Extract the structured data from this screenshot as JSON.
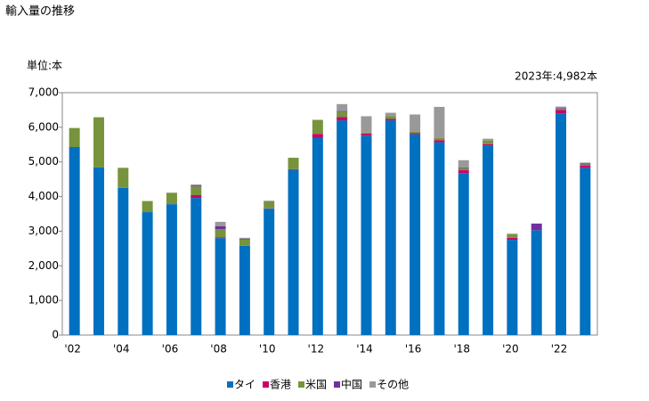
{
  "chart_data": {
    "type": "stacked_bar",
    "title": "輸入量の推移",
    "unit_label": "単位:本",
    "annotation": "2023年:4,982本",
    "categories": [
      "'02",
      null,
      "'04",
      null,
      "'06",
      null,
      "'08",
      null,
      "'10",
      null,
      "'12",
      null,
      "'14",
      null,
      "'16",
      null,
      "'18",
      null,
      "'20",
      null,
      "'22",
      null
    ],
    "series": [
      {
        "name": "タイ",
        "color": "#0070c0",
        "values": [
          5430,
          4840,
          4250,
          3550,
          3780,
          3960,
          2800,
          2580,
          3650,
          4770,
          5700,
          6200,
          5760,
          6200,
          5800,
          5570,
          4680,
          5480,
          2750,
          3030,
          6400,
          4830
        ]
      },
      {
        "name": "香港",
        "color": "#cc0066",
        "values": [
          0,
          0,
          0,
          0,
          0,
          80,
          20,
          0,
          10,
          20,
          110,
          100,
          60,
          40,
          30,
          60,
          80,
          30,
          60,
          20,
          100,
          60
        ]
      },
      {
        "name": "米国",
        "color": "#77933c",
        "values": [
          550,
          1450,
          580,
          320,
          330,
          250,
          240,
          180,
          200,
          330,
          400,
          150,
          30,
          80,
          40,
          60,
          60,
          100,
          100,
          0,
          30,
          40
        ]
      },
      {
        "name": "中国",
        "color": "#7030a0",
        "values": [
          0,
          0,
          0,
          0,
          0,
          30,
          80,
          20,
          0,
          0,
          0,
          20,
          0,
          0,
          0,
          0,
          20,
          0,
          0,
          170,
          20,
          30
        ]
      },
      {
        "name": "その他",
        "color": "#999999",
        "values": [
          0,
          0,
          0,
          0,
          0,
          30,
          130,
          30,
          20,
          0,
          10,
          200,
          470,
          100,
          500,
          900,
          210,
          60,
          20,
          0,
          50,
          22
        ]
      }
    ],
    "ylim": [
      0,
      7000
    ],
    "yticks": [
      0,
      {
        "value": 1000,
        "label": "1,000"
      },
      {
        "value": 2000,
        "label": "2,000"
      },
      {
        "value": 3000,
        "label": "3,000"
      },
      {
        "value": 4000,
        "label": "4,000"
      },
      {
        "value": 5000,
        "label": "5,000"
      },
      {
        "value": 6000,
        "label": "6,000"
      },
      {
        "value": 7000,
        "label": "7,000"
      }
    ]
  }
}
